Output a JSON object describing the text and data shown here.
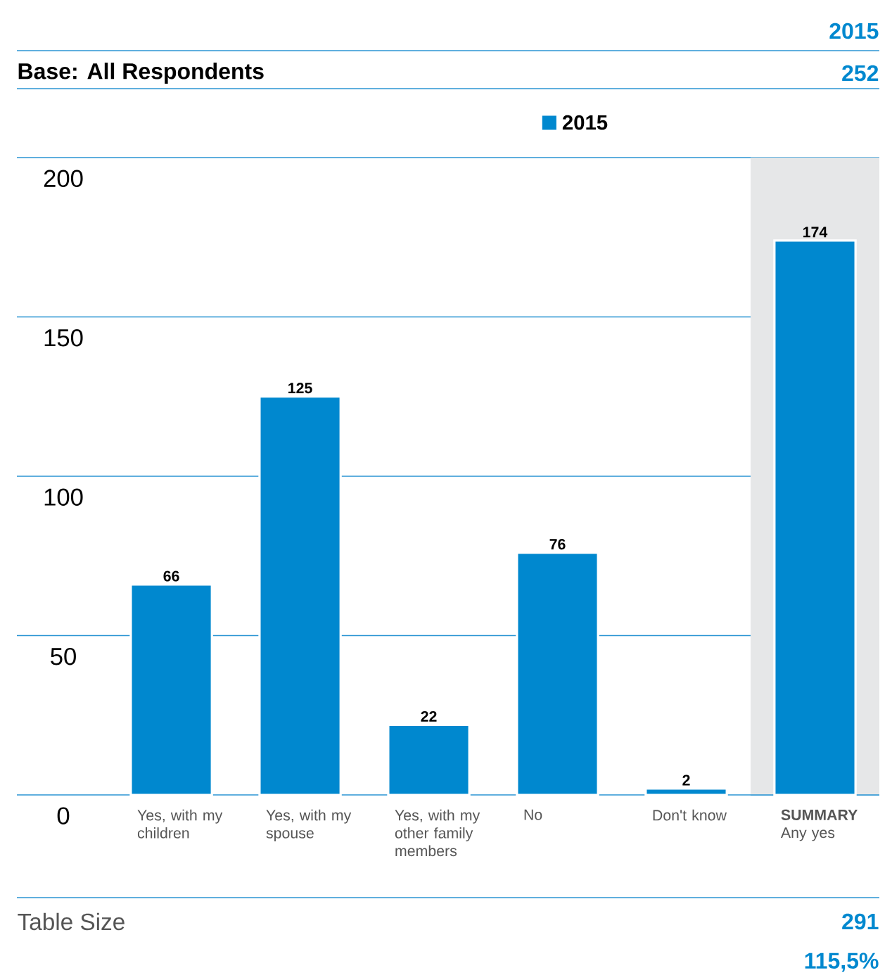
{
  "chart_data": {
    "type": "bar",
    "categories": [
      "Yes, with my children",
      "Yes, with my spouse",
      "Yes, with my other family members",
      "No",
      "Don't know",
      "**SUMMARY** Any yes"
    ],
    "series": [
      {
        "name": "2015",
        "color": "#0088cf",
        "values": [
          66,
          125,
          22,
          76,
          2,
          174
        ]
      }
    ],
    "ylim": [
      0,
      200
    ],
    "yticks": [
      0,
      50,
      100,
      150,
      200
    ],
    "grid": "y",
    "legend": "top",
    "data_labels": true,
    "bands": [
      {
        "axis": "x",
        "from": "**SUMMARY** Any yes",
        "to": "**SUMMARY** Any yes",
        "color": "#e6e7e8"
      }
    ],
    "annotations": [
      "2015",
      "Base: All Respondents",
      "252",
      "Table Size",
      "291",
      "115,5%"
    ]
  }
}
